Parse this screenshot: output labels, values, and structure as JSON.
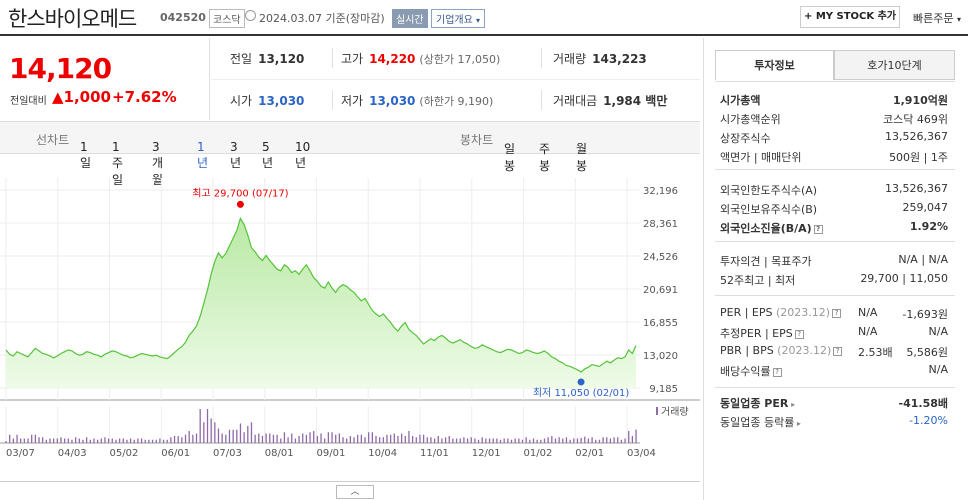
{
  "header": {
    "stock_name": "한스바이오메드",
    "code": "042520",
    "market": "코스닥",
    "date": "2024.03.07 기준(장마감)",
    "realtime": "실시간",
    "overview": "기업개요",
    "mystock": "+ MY STOCK 추가",
    "quick_order": "빠른주문"
  },
  "price": {
    "current": "14,120",
    "vs_label": "전일대비",
    "change": "▲1,000",
    "change_pct": "+7.62%"
  },
  "quote": {
    "prev_label": "전일",
    "prev": "13,120",
    "high_label": "고가",
    "high": "14,220",
    "upper_limit": "(상한가 17,050)",
    "volume_label": "거래량",
    "volume": "143,223",
    "open_label": "시가",
    "open": "13,030",
    "low_label": "저가",
    "low": "13,030",
    "lower_limit": "(하한가 9,190)",
    "amount_label": "거래대금",
    "amount": "1,984 백만"
  },
  "chart_tabs": {
    "line_label": "선차트",
    "periods": [
      "1일",
      "1주일",
      "3개월",
      "1년",
      "3년",
      "5년",
      "10년"
    ],
    "active": "1년",
    "candle_label": "봉차트",
    "candles": [
      "일봉",
      "주봉",
      "월봉"
    ]
  },
  "chart_data": {
    "type": "area",
    "y_ticks": [
      "32,196",
      "28,361",
      "24,526",
      "20,691",
      "16,855",
      "13,020",
      "9,185"
    ],
    "ylim": [
      9185,
      32196
    ],
    "x_ticks": [
      "03/07",
      "04/03",
      "05/02",
      "06/01",
      "07/03",
      "08/01",
      "09/01",
      "10/04",
      "11/01",
      "12/01",
      "01/02",
      "02/01",
      "03/04"
    ],
    "high_label": "최고 29,700 (07/17)",
    "low_label": "최저 11,050 (02/01)",
    "high": 29700,
    "low": 11050,
    "volume_label": "거래량",
    "fill_color": "#c8efb8",
    "line_color": "#55c33a",
    "values": [
      13600,
      13100,
      12900,
      13400,
      13200,
      13000,
      12800,
      13300,
      13800,
      13500,
      13200,
      13100,
      12900,
      12700,
      12900,
      13200,
      13400,
      13600,
      13500,
      13200,
      13000,
      13100,
      13400,
      13300,
      13100,
      13000,
      12800,
      13100,
      13300,
      13500,
      13400,
      13200,
      13000,
      12900,
      12700,
      12800,
      13000,
      13200,
      13100,
      13000,
      12900,
      13000,
      12800,
      12700,
      12600,
      12900,
      13300,
      13700,
      14000,
      14500,
      15300,
      15800,
      16400,
      17500,
      19000,
      20600,
      22400,
      23900,
      24900,
      24300,
      24800,
      25700,
      26600,
      27500,
      28900,
      28200,
      27000,
      25500,
      25000,
      24400,
      24000,
      24600,
      24000,
      23500,
      23000,
      22800,
      23500,
      23200,
      22600,
      22800,
      22400,
      23000,
      23500,
      22800,
      22000,
      21600,
      21000,
      20800,
      21500,
      20800,
      20300,
      20900,
      21200,
      21000,
      20600,
      20300,
      19800,
      19300,
      19600,
      18900,
      18200,
      17800,
      17500,
      17800,
      17300,
      16800,
      16200,
      15800,
      16400,
      16800,
      16000,
      15600,
      15300,
      14800,
      14300,
      14600,
      14900,
      14700,
      15100,
      15300,
      15000,
      14600,
      14400,
      14600,
      14800,
      14500,
      14300,
      14000,
      13800,
      13900,
      14200,
      14000,
      13800,
      13600,
      13400,
      13300,
      13500,
      13700,
      13600,
      13400,
      13200,
      13300,
      13600,
      13500,
      13300,
      13200,
      13300,
      13500,
      13200,
      12800,
      12600,
      12300,
      12100,
      11800,
      11700,
      11500,
      11300,
      11050,
      11400,
      11600,
      11900,
      11800,
      11700,
      12000,
      12300,
      12100,
      12400,
      12700,
      12600,
      12800,
      13600,
      13200,
      14120
    ]
  },
  "info_panel": {
    "tab_active": "투자정보",
    "tab_other": "호가10단계",
    "g1": [
      {
        "label": "시가총액",
        "value": "1,910억원"
      },
      {
        "label": "시가총액순위",
        "value": "코스닥 469위"
      },
      {
        "label": "상장주식수",
        "value": "13,526,367"
      },
      {
        "label": "액면가 | 매매단위",
        "value": "500원 | 1주"
      }
    ],
    "g2": [
      {
        "label": "외국인한도주식수(A)",
        "value": "13,526,367"
      },
      {
        "label": "외국인보유주식수(B)",
        "value": "259,047"
      },
      {
        "label": "외국인소진율(B/A)",
        "value": "1.92%"
      }
    ],
    "g3": [
      {
        "label": "투자의견 | 목표주가",
        "value": "N/A | N/A"
      },
      {
        "label": "52주최고 | 최저",
        "value": "29,700 | 11,050"
      }
    ],
    "g4": [
      {
        "label": "PER | EPS",
        "sub": "(2023.12)",
        "value1": "N/A",
        "value2": "-1,693원"
      },
      {
        "label": "추정PER | EPS",
        "sub": "",
        "value1": "N/A",
        "value2": "N/A"
      },
      {
        "label": "PBR | BPS",
        "sub": "(2023.12)",
        "value1": "2.53배",
        "value2": "5,586원"
      },
      {
        "label": "배당수익률",
        "sub": "",
        "value1": "",
        "value2": "N/A"
      }
    ],
    "g5": [
      {
        "label": "동일업종 PER",
        "value": "-41.58배"
      },
      {
        "label": "동일업종 등락률",
        "value": "-1.20%"
      }
    ]
  }
}
